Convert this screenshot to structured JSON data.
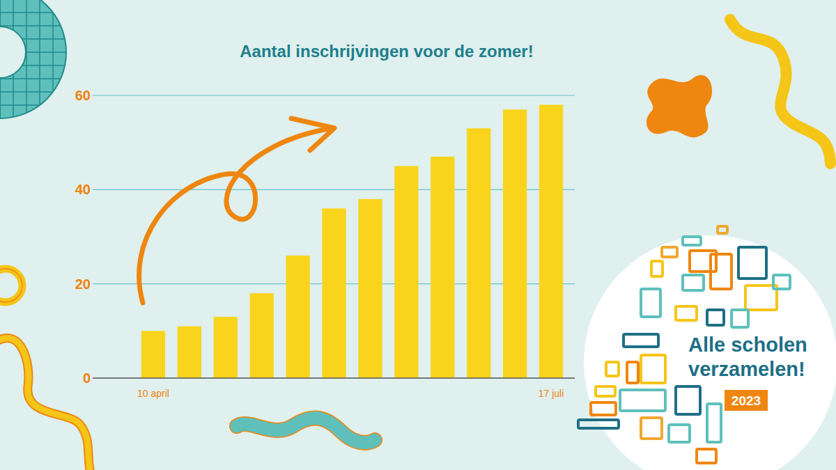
{
  "chart_data": {
    "type": "bar",
    "title": "Aantal inschrijvingen voor de zomer!",
    "categories": [
      "10 april",
      null,
      null,
      null,
      null,
      null,
      null,
      null,
      null,
      null,
      null,
      "17 juli"
    ],
    "values": [
      10,
      11,
      13,
      18,
      26,
      36,
      38,
      45,
      47,
      53,
      57,
      58
    ],
    "color": "#fad41c",
    "ylim": [
      0,
      60
    ],
    "yticks": [
      0,
      20,
      40,
      60
    ],
    "grid": true
  },
  "logo": {
    "lines": [
      "Alle scholen",
      "verzamelen!"
    ],
    "year": "2023"
  }
}
